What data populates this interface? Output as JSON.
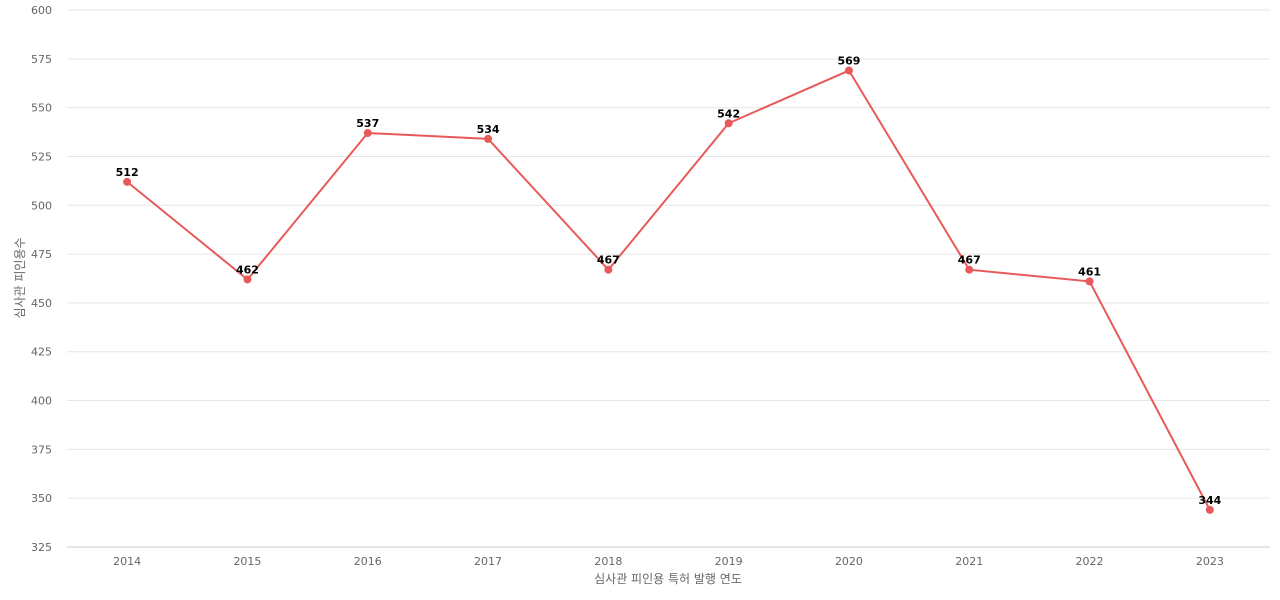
{
  "chart_data": {
    "type": "line",
    "xlabel": "심사관 피인용 특허 발행 연도",
    "ylabel": "심사관 피인용수",
    "categories": [
      "2014",
      "2015",
      "2016",
      "2017",
      "2018",
      "2019",
      "2020",
      "2021",
      "2022",
      "2023"
    ],
    "series": [
      {
        "values": [
          512,
          462,
          537,
          534,
          467,
          542,
          569,
          467,
          461,
          344
        ],
        "color": "#e85a5a"
      }
    ],
    "ylim": [
      325,
      600
    ],
    "yticks": [
      325,
      350,
      375,
      400,
      425,
      450,
      475,
      500,
      525,
      550,
      575,
      600
    ],
    "grid": true,
    "data_labels": true
  }
}
